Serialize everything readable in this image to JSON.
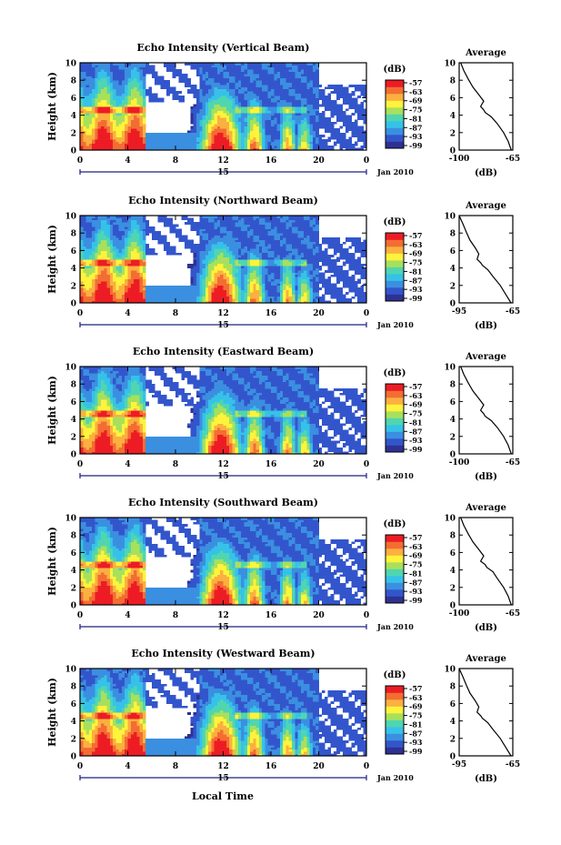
{
  "figure": {
    "month_label": "Jan 2010",
    "day_label": "15",
    "xlabel": "Local Time",
    "colorbar_unit": "(dB)",
    "colorbar_ticks": [
      "-57",
      "-63",
      "-69",
      "-75",
      "-81",
      "-87",
      "-93",
      "-99"
    ],
    "colormap": [
      "#2e3192",
      "#3355cc",
      "#3b8fe0",
      "#36c2e8",
      "#4fd6b0",
      "#a8e05c",
      "#fff33b",
      "#fbb040",
      "#f36d32",
      "#ed1c24"
    ],
    "avg_title": "Average",
    "avg_xlabel": "(dB)"
  },
  "chart_data": [
    {
      "type": "heatmap",
      "title": "Echo Intensity (Vertical Beam)",
      "ylabel": "Height (km)",
      "xticks": [
        "0",
        "4",
        "8",
        "12",
        "16",
        "20",
        "0"
      ],
      "yticks": [
        "0",
        "2",
        "4",
        "6",
        "8",
        "10"
      ],
      "xlim": [
        0,
        24
      ],
      "ylim": [
        0,
        10
      ],
      "colorbar_range": [
        -99,
        -57
      ],
      "average_profile": {
        "type": "line",
        "xticks": [
          "-100",
          "-65"
        ],
        "xlim": [
          -100,
          -65
        ],
        "yticks": [
          "0",
          "2",
          "4",
          "6",
          "8",
          "10"
        ],
        "ylim": [
          0,
          10
        ],
        "x": [
          -66,
          -68,
          -71,
          -75,
          -79,
          -83,
          -84,
          -86,
          -84,
          -87,
          -91,
          -94,
          -97,
          -99
        ],
        "y": [
          0,
          1,
          2,
          3,
          3.8,
          4.3,
          4.6,
          5,
          5.6,
          6.3,
          7.2,
          8.1,
          9.1,
          10
        ]
      }
    },
    {
      "type": "heatmap",
      "title": "Echo Intensity (Northward Beam)",
      "ylabel": "Height (km)",
      "xticks": [
        "0",
        "4",
        "8",
        "12",
        "16",
        "20",
        "0"
      ],
      "yticks": [
        "0",
        "2",
        "4",
        "6",
        "8",
        "10"
      ],
      "xlim": [
        0,
        24
      ],
      "ylim": [
        0,
        10
      ],
      "colorbar_range": [
        -99,
        -57
      ],
      "average_profile": {
        "type": "line",
        "xticks": [
          "-95",
          "-65"
        ],
        "xlim": [
          -95,
          -65
        ],
        "yticks": [
          "0",
          "2",
          "4",
          "6",
          "8",
          "10"
        ],
        "ylim": [
          0,
          10
        ],
        "x": [
          -66,
          -69,
          -72,
          -76,
          -79,
          -82,
          -83,
          -85,
          -84,
          -86,
          -89,
          -91,
          -93,
          -95
        ],
        "y": [
          0,
          1,
          2,
          3,
          3.8,
          4.3,
          4.6,
          5,
          5.6,
          6.3,
          7.2,
          8.1,
          9.1,
          10
        ]
      }
    },
    {
      "type": "heatmap",
      "title": "Echo Intensity (Eastward Beam)",
      "ylabel": "Height (km)",
      "xticks": [
        "0",
        "4",
        "8",
        "12",
        "16",
        "20",
        "0"
      ],
      "yticks": [
        "0",
        "2",
        "4",
        "6",
        "8",
        "10"
      ],
      "xlim": [
        0,
        24
      ],
      "ylim": [
        0,
        10
      ],
      "colorbar_range": [
        -99,
        -57
      ],
      "average_profile": {
        "type": "line",
        "xticks": [
          "-100",
          "-65"
        ],
        "xlim": [
          -100,
          -65
        ],
        "yticks": [
          "0",
          "2",
          "4",
          "6",
          "8",
          "10"
        ],
        "ylim": [
          0,
          10
        ],
        "x": [
          -66,
          -68,
          -71,
          -75,
          -79,
          -83,
          -84,
          -86,
          -84,
          -87,
          -91,
          -94,
          -97,
          -99
        ],
        "y": [
          0,
          1,
          2,
          3,
          3.8,
          4.3,
          4.6,
          5,
          5.6,
          6.3,
          7.2,
          8.1,
          9.1,
          10
        ]
      }
    },
    {
      "type": "heatmap",
      "title": "Echo Intensity (Southward Beam)",
      "ylabel": "Height (km)",
      "xticks": [
        "0",
        "4",
        "8",
        "12",
        "16",
        "20",
        "0"
      ],
      "yticks": [
        "0",
        "2",
        "4",
        "6",
        "8",
        "10"
      ],
      "xlim": [
        0,
        24
      ],
      "ylim": [
        0,
        10
      ],
      "colorbar_range": [
        -99,
        -57
      ],
      "average_profile": {
        "type": "line",
        "xticks": [
          "-100",
          "-65"
        ],
        "xlim": [
          -100,
          -65
        ],
        "yticks": [
          "0",
          "2",
          "4",
          "6",
          "8",
          "10"
        ],
        "ylim": [
          0,
          10
        ],
        "x": [
          -66,
          -68,
          -71,
          -75,
          -78,
          -82,
          -83,
          -86,
          -84,
          -87,
          -91,
          -94,
          -97,
          -99
        ],
        "y": [
          0,
          1,
          2,
          3,
          3.8,
          4.3,
          4.6,
          5,
          5.6,
          6.3,
          7.2,
          8.1,
          9.1,
          10
        ]
      }
    },
    {
      "type": "heatmap",
      "title": "Echo Intensity (Westward Beam)",
      "ylabel": "Height (km)",
      "xticks": [
        "0",
        "4",
        "8",
        "12",
        "16",
        "20",
        "0"
      ],
      "yticks": [
        "0",
        "2",
        "4",
        "6",
        "8",
        "10"
      ],
      "xlim": [
        0,
        24
      ],
      "ylim": [
        0,
        10
      ],
      "colorbar_range": [
        -99,
        -57
      ],
      "average_profile": {
        "type": "line",
        "xticks": [
          "-95",
          "-65"
        ],
        "xlim": [
          -95,
          -65
        ],
        "yticks": [
          "0",
          "2",
          "4",
          "6",
          "8",
          "10"
        ],
        "ylim": [
          0,
          10
        ],
        "x": [
          -66,
          -69,
          -72,
          -76,
          -79,
          -82,
          -83,
          -85,
          -84,
          -86,
          -89,
          -91,
          -93,
          -95
        ],
        "y": [
          0,
          1,
          2,
          3,
          3.8,
          4.3,
          4.6,
          5,
          5.6,
          6.3,
          7.2,
          8.1,
          9.1,
          10
        ]
      }
    }
  ]
}
